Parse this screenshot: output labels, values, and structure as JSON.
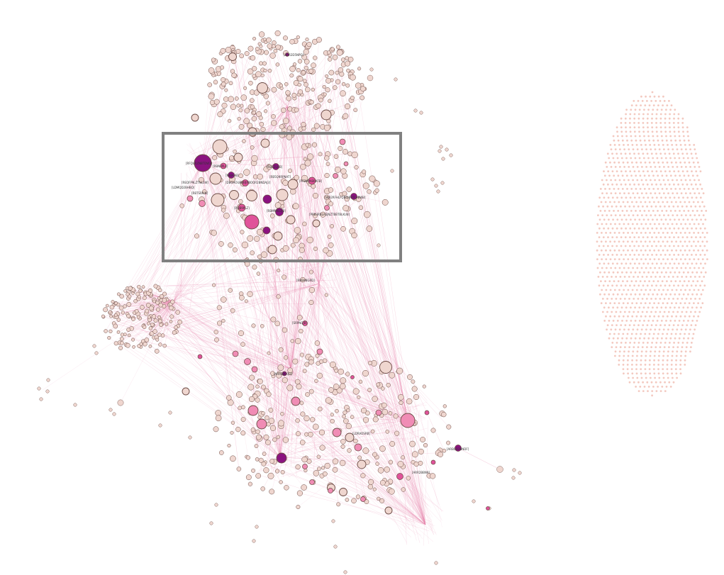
{
  "colors": {
    "background": "#ffffff",
    "edge": "#e98ab0",
    "node_light": "#efd6cf",
    "node_pink": "#f08cb5",
    "node_magenta": "#e0529a",
    "node_dark": "#8b1380",
    "node_stroke": "#6b4a44",
    "highlight_border": "#808080"
  },
  "labels": {
    "top": "[ARR2D5NPQ]",
    "hub_main": "[RFQVRZNBTDW3]",
    "l1": "[RBN8PL4]",
    "l2": "[MBIA9B]",
    "l3": "[RB5ZUBB]",
    "l4": "[RB5Q9RPNAT]",
    "l5": "[REQFP9LZTNL3W]",
    "l6": "[LDMQD2BHBQ]",
    "l7": "[DBGHOU8HB]",
    "l8": "[RBTSRAIN]",
    "l9": "[RBOQR2BNDAJ3]",
    "l10": "[PFBMPABRKFB]",
    "l11": "[SUIHBNTJMBJ2]",
    "l12": "[ROB9PLZ]",
    "l13": "[RBMN9LOJB]",
    "l14": "[WB2RFHLFQBDJB9TFHBWB]",
    "l15": "[PRB3RBLAEJNZTBBTBLKUB]",
    "l16": "[RB9ANGRD]",
    "l17": "[SRPNQJB]",
    "l18": "[ARR2BGQD]",
    "l19": "[LDRAOSRB]",
    "l20": "[ARBOD2BNDF]",
    "l21": "[ARR2BBN9]",
    "l22": "[ARR2D6OBAB]"
  }
}
